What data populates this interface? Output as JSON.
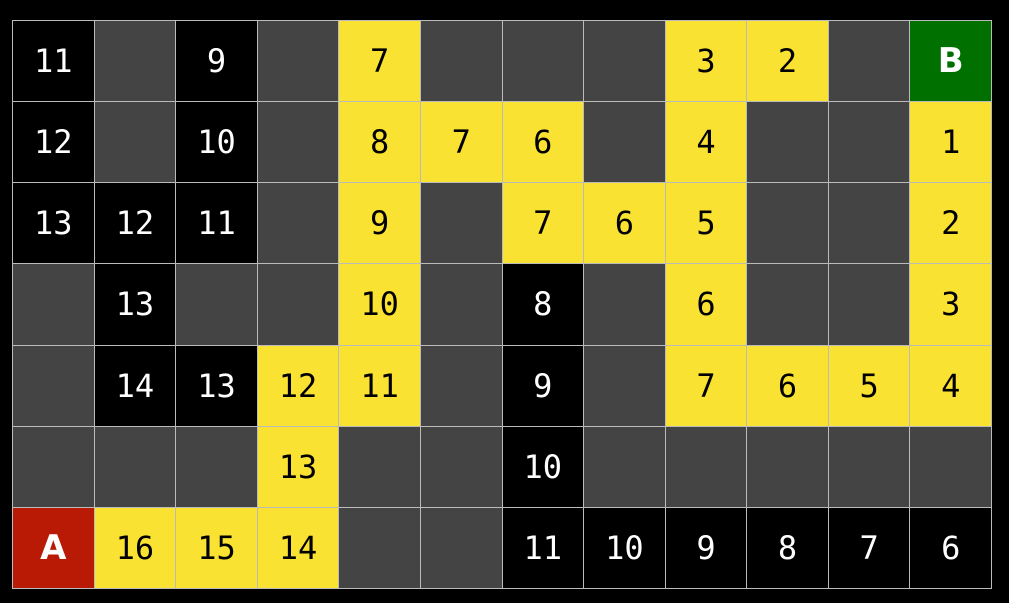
{
  "legend_colors": {
    "wall": "#444444",
    "visited": "#000000",
    "path": "#fae232",
    "start": "#b81a06",
    "goal": "#007000"
  },
  "grid": [
    [
      [
        "visited",
        "11"
      ],
      [
        "wall",
        ""
      ],
      [
        "visited",
        "9"
      ],
      [
        "wall",
        ""
      ],
      [
        "path",
        "7"
      ],
      [
        "wall",
        ""
      ],
      [
        "wall",
        ""
      ],
      [
        "wall",
        ""
      ],
      [
        "path",
        "3"
      ],
      [
        "path",
        "2"
      ],
      [
        "wall",
        ""
      ],
      [
        "goal",
        "B"
      ]
    ],
    [
      [
        "visited",
        "12"
      ],
      [
        "wall",
        ""
      ],
      [
        "visited",
        "10"
      ],
      [
        "wall",
        ""
      ],
      [
        "path",
        "8"
      ],
      [
        "path",
        "7"
      ],
      [
        "path",
        "6"
      ],
      [
        "wall",
        ""
      ],
      [
        "path",
        "4"
      ],
      [
        "wall",
        ""
      ],
      [
        "wall",
        ""
      ],
      [
        "path",
        "1"
      ]
    ],
    [
      [
        "visited",
        "13"
      ],
      [
        "visited",
        "12"
      ],
      [
        "visited",
        "11"
      ],
      [
        "wall",
        ""
      ],
      [
        "path",
        "9"
      ],
      [
        "wall",
        ""
      ],
      [
        "path",
        "7"
      ],
      [
        "path",
        "6"
      ],
      [
        "path",
        "5"
      ],
      [
        "wall",
        ""
      ],
      [
        "wall",
        ""
      ],
      [
        "path",
        "2"
      ]
    ],
    [
      [
        "wall",
        ""
      ],
      [
        "visited",
        "13"
      ],
      [
        "wall",
        ""
      ],
      [
        "wall",
        ""
      ],
      [
        "path",
        "10"
      ],
      [
        "wall",
        ""
      ],
      [
        "visited",
        "8"
      ],
      [
        "wall",
        ""
      ],
      [
        "path",
        "6"
      ],
      [
        "wall",
        ""
      ],
      [
        "wall",
        ""
      ],
      [
        "path",
        "3"
      ]
    ],
    [
      [
        "wall",
        ""
      ],
      [
        "visited",
        "14"
      ],
      [
        "visited",
        "13"
      ],
      [
        "path",
        "12"
      ],
      [
        "path",
        "11"
      ],
      [
        "wall",
        ""
      ],
      [
        "visited",
        "9"
      ],
      [
        "wall",
        ""
      ],
      [
        "path",
        "7"
      ],
      [
        "path",
        "6"
      ],
      [
        "path",
        "5"
      ],
      [
        "path",
        "4"
      ]
    ],
    [
      [
        "wall",
        ""
      ],
      [
        "wall",
        ""
      ],
      [
        "wall",
        ""
      ],
      [
        "path",
        "13"
      ],
      [
        "wall",
        ""
      ],
      [
        "wall",
        ""
      ],
      [
        "visited",
        "10"
      ],
      [
        "wall",
        ""
      ],
      [
        "wall",
        ""
      ],
      [
        "wall",
        ""
      ],
      [
        "wall",
        ""
      ],
      [
        "wall",
        ""
      ]
    ],
    [
      [
        "start",
        "A"
      ],
      [
        "path",
        "16"
      ],
      [
        "path",
        "15"
      ],
      [
        "path",
        "14"
      ],
      [
        "wall",
        ""
      ],
      [
        "wall",
        ""
      ],
      [
        "visited",
        "11"
      ],
      [
        "visited",
        "10"
      ],
      [
        "visited",
        "9"
      ],
      [
        "visited",
        "8"
      ],
      [
        "visited",
        "7"
      ],
      [
        "visited",
        "6"
      ]
    ]
  ]
}
